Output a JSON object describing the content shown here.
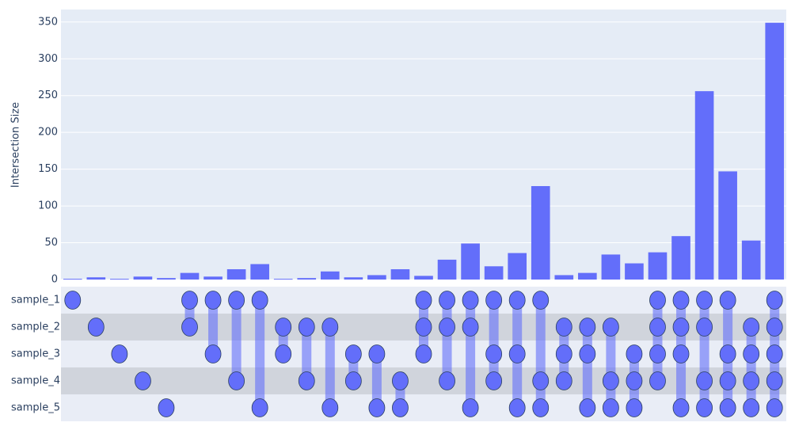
{
  "chart_data": {
    "type": "upset",
    "y_axis_label": "Intersection Size",
    "sets": [
      "sample_1",
      "sample_2",
      "sample_3",
      "sample_4",
      "sample_5"
    ],
    "members": [
      [
        0
      ],
      [
        1
      ],
      [
        2
      ],
      [
        3
      ],
      [
        4
      ],
      [
        0,
        1
      ],
      [
        0,
        2
      ],
      [
        0,
        3
      ],
      [
        0,
        4
      ],
      [
        1,
        2
      ],
      [
        1,
        3
      ],
      [
        1,
        4
      ],
      [
        2,
        3
      ],
      [
        2,
        4
      ],
      [
        3,
        4
      ],
      [
        0,
        1,
        2
      ],
      [
        0,
        1,
        3
      ],
      [
        0,
        1,
        4
      ],
      [
        0,
        2,
        3
      ],
      [
        0,
        2,
        4
      ],
      [
        0,
        3,
        4
      ],
      [
        1,
        2,
        3
      ],
      [
        1,
        2,
        4
      ],
      [
        1,
        3,
        4
      ],
      [
        2,
        3,
        4
      ],
      [
        0,
        1,
        2,
        3
      ],
      [
        0,
        1,
        2,
        4
      ],
      [
        0,
        1,
        3,
        4
      ],
      [
        0,
        2,
        3,
        4
      ],
      [
        1,
        2,
        3,
        4
      ],
      [
        0,
        1,
        2,
        3,
        4
      ]
    ],
    "values": [
      1,
      3,
      1,
      4,
      2,
      9,
      4,
      14,
      21,
      1,
      2,
      11,
      3,
      6,
      14,
      5,
      27,
      49,
      18,
      36,
      127,
      6,
      9,
      34,
      22,
      37,
      59,
      256,
      147,
      53,
      349
    ],
    "color": "#636efa",
    "ylim": [
      0,
      367
    ],
    "yticks": [
      0,
      50,
      100,
      150,
      200,
      250,
      300,
      350
    ],
    "grid": true
  }
}
